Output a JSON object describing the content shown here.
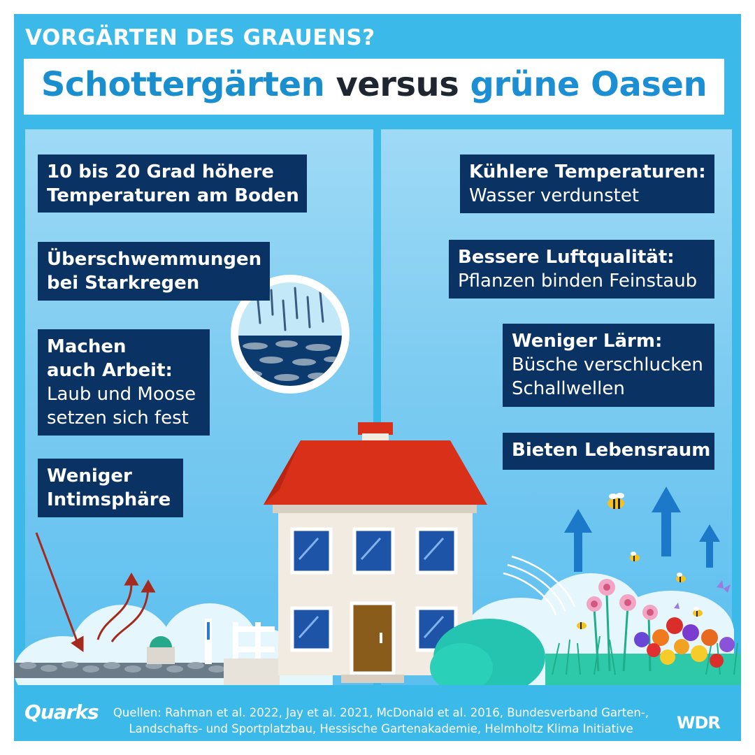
{
  "header": {
    "kicker": "VORGÄRTEN DES GRAUENS?",
    "title_part1": "Schottergärten",
    "title_part2": " versus ",
    "title_part3": "grüne Oasen"
  },
  "left_facts": [
    {
      "bold": "10 bis 20 Grad höhere",
      "bold2": "Temperaturen am Boden"
    },
    {
      "bold": "Überschwemmungen",
      "bold2": "bei Starkregen"
    },
    {
      "bold": "Machen",
      "bold2": "auch Arbeit:",
      "text": "Laub und Moose",
      "text2": "setzen sich fest"
    },
    {
      "bold": "Weniger",
      "bold2": "Intimsphäre"
    }
  ],
  "right_facts": [
    {
      "bold": "Kühlere Temperaturen:",
      "text": "Wasser verdunstet"
    },
    {
      "bold": "Bessere Luftqualität:",
      "text": "Pflanzen binden Feinstaub"
    },
    {
      "bold": "Weniger Lärm:",
      "text": "Büsche verschlucken",
      "text2": "Schallwellen"
    },
    {
      "bold": "Bieten Lebensraum"
    }
  ],
  "footer": {
    "brand_left": "Quarks",
    "sources_line1": "Quellen: Rahman et al. 2022, Jay et al. 2021, McDonald et al. 2016, Bundesverband Garten-,",
    "sources_line2": "Landschafts- und Sportplatzbau, Hessische Gartenakademie, Helmholtz Klima Initiative",
    "brand_right": "WDR"
  },
  "colors": {
    "background": "#3bb9e8",
    "box": "#0a3263",
    "title_blue": "#1a8fd0",
    "roof": "#d9301a",
    "wall": "#f2ebe2"
  }
}
